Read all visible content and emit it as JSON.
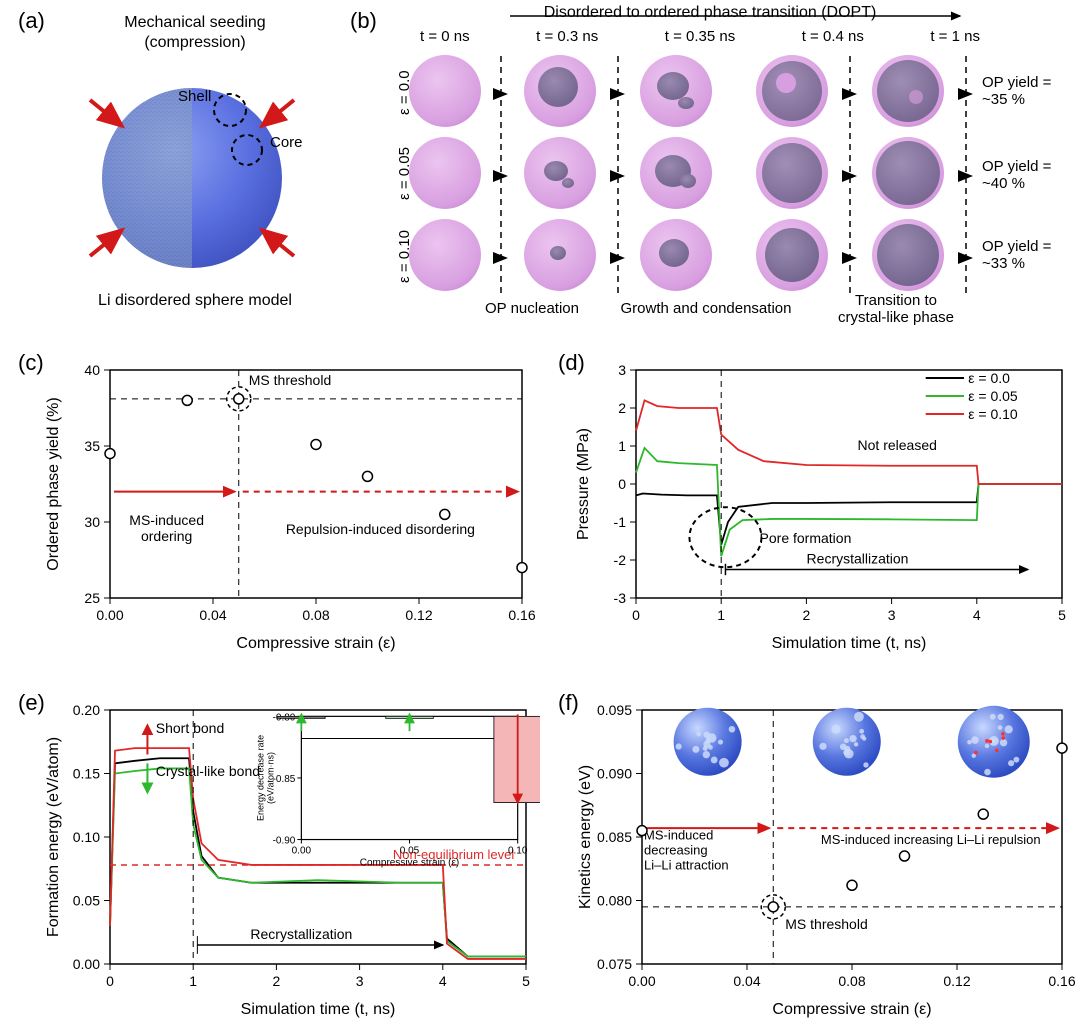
{
  "panelA": {
    "label": "(a)",
    "title1": "Mechanical seeding",
    "title2": "(compression)",
    "shell": "Shell",
    "core": "Core",
    "bottom": "Li disordered sphere model",
    "sphere_blue": "#5a6fe0",
    "sphere_shell": "#8fa6c7",
    "arrow_color": "#d21818"
  },
  "panelB": {
    "label": "(b)",
    "header": "Disordered to ordered phase transition (DOPT)",
    "times": [
      "t = 0 ns",
      "t = 0.3 ns",
      "t = 0.35 ns",
      "t = 0.4 ns",
      "t = 1 ns"
    ],
    "eps_labels": [
      "ε = 0.0",
      "ε = 0.05",
      "ε = 0.10"
    ],
    "yields": [
      "OP yield =\n~35 %",
      "OP yield =\n~40 %",
      "OP yield =\n~33 %"
    ],
    "stage_labels": [
      "OP nucleation",
      "Growth and condensation",
      "Transition to\ncrystal-like phase"
    ],
    "shell_color": "#d89fe0",
    "core_color": "#7a6896",
    "arrow_color": "#000000"
  },
  "panelC": {
    "label": "(c)",
    "xlabel": "Compressive strain (ε)",
    "ylabel": "Ordered phase yield (%)",
    "ms_threshold": "MS threshold",
    "region1": "MS-induced\nordering",
    "region2": "Repulsion-induced disordering",
    "xlim": [
      0.0,
      0.16
    ],
    "ylim": [
      25,
      40
    ],
    "points_x": [
      0.0,
      0.03,
      0.05,
      0.08,
      0.1,
      0.13,
      0.16
    ],
    "points_y": [
      34.5,
      38.0,
      38.1,
      35.1,
      33.0,
      30.5,
      27.0
    ],
    "axis_color": "#000000",
    "dash_color": "#000000",
    "arrow_color": "#d21818",
    "font_size": 15
  },
  "panelD": {
    "label": "(d)",
    "xlabel": "Simulation time (t, ns)",
    "ylabel": "Pressure (MPa)",
    "legend": [
      "ε = 0.0",
      "ε = 0.05",
      "ε = 0.10"
    ],
    "not_released": "Not released",
    "pore": "Pore formation",
    "recrystallization": "Recrystallization",
    "xlim": [
      0,
      5
    ],
    "ylim": [
      -3,
      3
    ],
    "colors": {
      "e0": "#000000",
      "e05": "#2db82d",
      "e10": "#e02828"
    },
    "font_size": 15
  },
  "panelE": {
    "label": "(e)",
    "xlabel": "Simulation time (t, ns)",
    "ylabel": "Formation energy (eV/atom)",
    "short_bond": "Short bond",
    "crystal_bond": "Crystal-like bond",
    "noneq": "Non-equilibrium level",
    "recrystallization": "Recrystallization",
    "inset_xlabel": "Compressive strain (ε)",
    "inset_ylabel": "Energy decrease rate\n(eV/atom·ns)",
    "xlim": [
      0,
      5
    ],
    "ylim": [
      0.0,
      0.2
    ],
    "inset_xlim": [
      0.0,
      0.1
    ],
    "inset_ylim": [
      -0.9,
      -0.8
    ],
    "inset_bars_x": [
      0.0,
      0.05,
      0.1
    ],
    "inset_bars_y": [
      -0.8,
      -0.8,
      -0.87
    ],
    "colors": {
      "e0": "#000000",
      "e05": "#2db82d",
      "e10": "#e02828",
      "gray": "#808080",
      "pink": "#f4b6b6",
      "lightgreen": "#b6e8b6"
    },
    "font_size": 15
  },
  "panelF": {
    "label": "(f)",
    "xlabel": "Compressive strain (ε)",
    "ylabel": "Kinetics energy (eV)",
    "ms_threshold": "MS threshold",
    "region1": "MS-induced\ndecreasing\nLi–Li attraction",
    "region2": "MS-induced increasing Li–Li repulsion",
    "xlim": [
      0.0,
      0.16
    ],
    "ylim": [
      0.075,
      0.095
    ],
    "points_x": [
      0.0,
      0.05,
      0.08,
      0.1,
      0.13,
      0.16
    ],
    "points_y": [
      0.0855,
      0.0795,
      0.0812,
      0.0835,
      0.0868,
      0.092
    ],
    "sphere_blue": "#3a5ad8",
    "sphere_light": "#a8c0f0",
    "arrow_color": "#d21818",
    "font_size": 15
  }
}
